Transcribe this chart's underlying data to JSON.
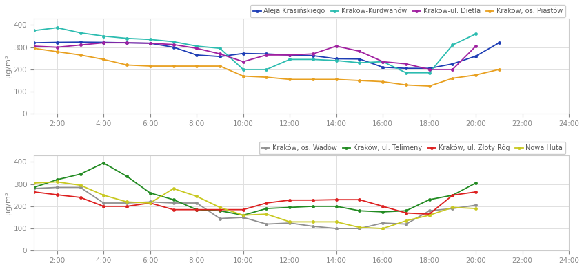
{
  "x_hours": [
    1,
    2,
    3,
    4,
    5,
    6,
    7,
    8,
    9,
    10,
    11,
    12,
    13,
    14,
    15,
    16,
    17,
    18,
    19,
    20,
    21
  ],
  "x_labels": [
    "2:00",
    "4:00",
    "6:00",
    "8:00",
    "10:00",
    "12:00",
    "14:00",
    "16:00",
    "18:00",
    "20:00",
    "22:00",
    "24:00"
  ],
  "x_ticks": [
    2,
    4,
    6,
    8,
    10,
    12,
    14,
    16,
    18,
    20,
    22,
    24
  ],
  "top_series": {
    "Aleja Krasińskiego": {
      "color": "#1e3eb5",
      "values": [
        320,
        322,
        323,
        322,
        320,
        318,
        300,
        265,
        258,
        272,
        270,
        265,
        262,
        248,
        247,
        210,
        205,
        205,
        225,
        260,
        320
      ]
    },
    "Kraków-Kurdwanów": {
      "color": "#2cbcb0",
      "values": [
        375,
        388,
        365,
        350,
        340,
        335,
        325,
        305,
        295,
        200,
        200,
        245,
        245,
        240,
        230,
        235,
        185,
        185,
        310,
        360,
        null
      ]
    },
    "Kraków-ul. Dietla": {
      "color": "#a020a0",
      "values": [
        305,
        300,
        310,
        320,
        320,
        318,
        312,
        295,
        270,
        235,
        265,
        265,
        270,
        305,
        282,
        235,
        225,
        200,
        200,
        305,
        null
      ]
    },
    "Kraków, os. Piastów": {
      "color": "#e8a020",
      "values": [
        295,
        280,
        265,
        245,
        220,
        215,
        215,
        215,
        215,
        170,
        165,
        155,
        155,
        155,
        150,
        145,
        130,
        125,
        160,
        175,
        200
      ]
    }
  },
  "bottom_series": {
    "Kraków, os. Wadów": {
      "color": "#909090",
      "values": [
        280,
        285,
        285,
        215,
        215,
        220,
        215,
        215,
        145,
        150,
        120,
        125,
        110,
        100,
        100,
        125,
        120,
        180,
        190,
        205,
        null
      ]
    },
    "Kraków, ul. Telimeny": {
      "color": "#228b22",
      "values": [
        285,
        320,
        345,
        395,
        335,
        260,
        230,
        185,
        180,
        160,
        190,
        195,
        200,
        200,
        180,
        175,
        180,
        230,
        250,
        305,
        null
      ]
    },
    "Kraków, ul. Złoty Róg": {
      "color": "#dd2020",
      "values": [
        265,
        252,
        240,
        200,
        200,
        215,
        185,
        185,
        185,
        185,
        215,
        228,
        228,
        230,
        230,
        200,
        170,
        165,
        250,
        265,
        null
      ]
    },
    "Nowa Huta": {
      "color": "#c8c820",
      "values": [
        305,
        310,
        295,
        250,
        220,
        215,
        280,
        245,
        195,
        160,
        165,
        130,
        130,
        130,
        105,
        100,
        135,
        160,
        195,
        190,
        null
      ]
    }
  },
  "ylim": [
    0,
    430
  ],
  "yticks": [
    0,
    100,
    200,
    300,
    400
  ],
  "ylabel": "μg/m³",
  "bg_color": "#ffffff",
  "plot_bg": "#ffffff",
  "grid_color": "#e0e0e0",
  "text_color": "#555555",
  "tick_color": "#888888"
}
